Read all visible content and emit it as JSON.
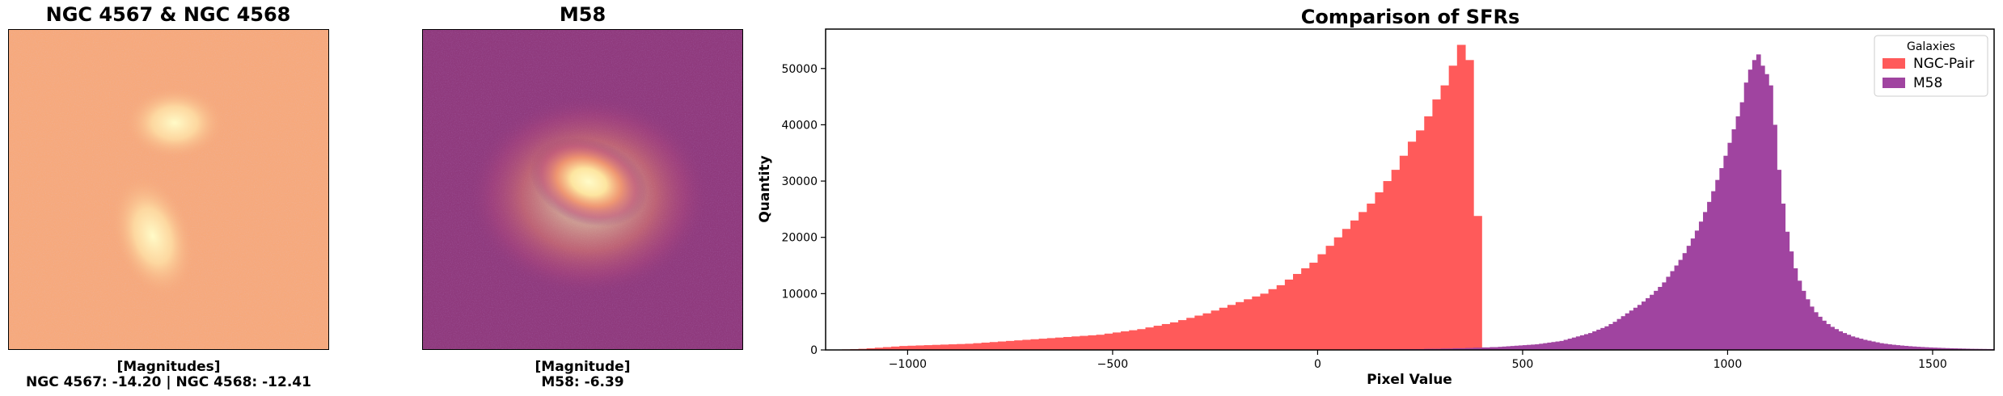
{
  "panels": {
    "left": {
      "title": "NGC 4567 & NGC 4568",
      "caption_line1": "[Magnitudes]",
      "caption_line2": "NGC 4567: -14.20 | NGC 4568: -12.41",
      "background_color": "#f6a97c",
      "glow_color": "#fffbc8"
    },
    "middle": {
      "title": "M58",
      "caption_line1": "[Magnitude]",
      "caption_line2": "M58: -6.39",
      "background_color": "#8f3a7d",
      "glow_color": "#fffbc8"
    }
  },
  "chart_data": {
    "type": "bar",
    "subtype": "overlapping-histogram",
    "title": "Comparison of SFRs",
    "xlabel": "Pixel Value",
    "ylabel": "Quantity",
    "xlim": [
      -1200,
      1650
    ],
    "ylim": [
      0,
      57000
    ],
    "xticks": [
      -1000,
      -500,
      0,
      500,
      1000,
      1500
    ],
    "xtick_labels": [
      "−1000",
      "−500",
      "0",
      "500",
      "1000",
      "1500"
    ],
    "yticks": [
      0,
      10000,
      20000,
      30000,
      40000,
      50000
    ],
    "ytick_labels": [
      "0",
      "10000",
      "20000",
      "30000",
      "40000",
      "50000"
    ],
    "legend": {
      "title": "Galaxies",
      "placement": "top-right"
    },
    "series": [
      {
        "name": "NGC-Pair",
        "color": "#ff5a5a",
        "bin_start": -1200,
        "bin_width": 20,
        "counts": [
          0,
          50,
          100,
          150,
          200,
          300,
          400,
          500,
          600,
          700,
          750,
          800,
          850,
          900,
          950,
          1000,
          1050,
          1100,
          1200,
          1300,
          1400,
          1500,
          1600,
          1700,
          1800,
          1900,
          2000,
          2100,
          2200,
          2300,
          2400,
          2500,
          2600,
          2700,
          2900,
          3100,
          3300,
          3500,
          3700,
          4000,
          4300,
          4600,
          4900,
          5300,
          5700,
          6100,
          6500,
          7000,
          7500,
          8000,
          8500,
          9000,
          9500,
          10000,
          10800,
          11500,
          12500,
          13500,
          14500,
          15500,
          17000,
          18500,
          20000,
          21500,
          23000,
          24500,
          26000,
          28000,
          30000,
          32000,
          34500,
          37000,
          39000,
          41500,
          44500,
          47000,
          50500,
          54200,
          51500,
          23800,
          0,
          0
        ]
      },
      {
        "name": "M58",
        "color": "#a044a0",
        "bin_start": -1200,
        "bin_width": 10,
        "counts": [
          0,
          0,
          0,
          0,
          0,
          0,
          0,
          0,
          0,
          0,
          0,
          0,
          0,
          0,
          0,
          0,
          0,
          0,
          0,
          0,
          0,
          0,
          0,
          0,
          0,
          0,
          0,
          0,
          0,
          0,
          0,
          0,
          0,
          0,
          0,
          0,
          0,
          0,
          0,
          0,
          0,
          0,
          0,
          0,
          0,
          0,
          0,
          0,
          0,
          0,
          0,
          0,
          0,
          0,
          0,
          0,
          0,
          0,
          0,
          0,
          0,
          0,
          0,
          0,
          0,
          0,
          0,
          0,
          0,
          0,
          0,
          0,
          0,
          0,
          0,
          0,
          0,
          0,
          0,
          0,
          0,
          0,
          0,
          0,
          0,
          0,
          0,
          0,
          0,
          0,
          0,
          0,
          0,
          0,
          0,
          0,
          0,
          0,
          0,
          0,
          0,
          0,
          0,
          0,
          0,
          0,
          0,
          0,
          0,
          0,
          0,
          0,
          0,
          0,
          0,
          0,
          0,
          0,
          0,
          0,
          50,
          50,
          50,
          50,
          50,
          50,
          50,
          50,
          50,
          50,
          100,
          100,
          100,
          100,
          100,
          100,
          100,
          100,
          100,
          100,
          150,
          150,
          150,
          150,
          150,
          150,
          200,
          200,
          200,
          200,
          250,
          250,
          250,
          300,
          300,
          300,
          350,
          350,
          400,
          400,
          450,
          450,
          500,
          500,
          550,
          600,
          650,
          700,
          750,
          800,
          850,
          900,
          950,
          1000,
          1100,
          1200,
          1300,
          1400,
          1500,
          1600,
          1800,
          2000,
          2200,
          2400,
          2600,
          2800,
          3000,
          3300,
          3600,
          3900,
          4200,
          4600,
          5000,
          5500,
          6000,
          6500,
          7000,
          7500,
          8000,
          8600,
          9200,
          9800,
          10500,
          11200,
          12000,
          13000,
          14000,
          15000,
          16000,
          17200,
          18500,
          19800,
          21200,
          22800,
          24500,
          26300,
          28200,
          30200,
          32300,
          34500,
          36800,
          39200,
          41500,
          44000,
          47500,
          49800,
          51500,
          52500,
          50500,
          49000,
          47000,
          40000,
          32000,
          26000,
          21000,
          17500,
          14500,
          12300,
          10500,
          9000,
          7700,
          6700,
          5900,
          5200,
          4600,
          4100,
          3700,
          3300,
          3000,
          2700,
          2400,
          2200,
          2000,
          1800,
          1650,
          1500,
          1350,
          1200,
          1100,
          1000,
          920,
          850,
          780,
          720,
          660,
          610,
          560,
          520,
          480,
          440,
          410,
          380,
          350,
          320,
          300,
          280,
          260,
          240,
          220,
          200,
          190,
          180,
          170,
          160,
          150,
          140,
          130,
          120,
          110,
          100,
          95,
          90,
          85,
          80,
          75,
          70,
          65,
          60,
          55,
          50,
          50,
          50,
          50,
          50,
          50,
          50,
          50,
          50,
          50,
          50,
          50,
          50,
          50,
          50,
          50,
          50,
          50,
          50,
          50,
          50,
          50,
          50,
          50,
          50,
          50,
          50,
          50,
          50,
          50,
          50,
          50,
          50,
          50,
          50,
          50,
          50,
          50,
          50,
          50,
          50,
          50,
          50,
          50,
          50,
          50,
          50,
          50,
          50,
          50,
          50,
          50,
          50,
          50,
          50,
          50,
          50,
          50,
          50,
          50,
          50,
          50,
          50,
          50,
          50,
          50,
          50,
          50,
          50,
          50,
          50,
          50,
          50,
          50,
          50,
          50,
          50,
          50,
          50,
          50,
          50,
          50,
          50,
          50,
          50,
          50,
          50,
          50,
          50,
          50,
          50,
          50,
          50,
          50,
          50,
          50,
          50,
          50,
          50,
          50,
          50,
          50,
          50,
          50,
          50,
          50,
          50,
          50,
          50,
          50,
          50,
          50,
          50,
          50,
          50,
          50,
          50,
          50,
          50,
          50,
          50,
          50,
          50,
          50,
          50,
          50,
          50,
          50,
          50,
          50,
          50,
          50,
          50,
          50,
          50,
          50,
          50,
          50,
          50,
          50,
          50,
          50,
          50,
          50,
          50,
          50,
          50,
          50,
          50,
          50,
          50,
          50
        ]
      }
    ]
  }
}
